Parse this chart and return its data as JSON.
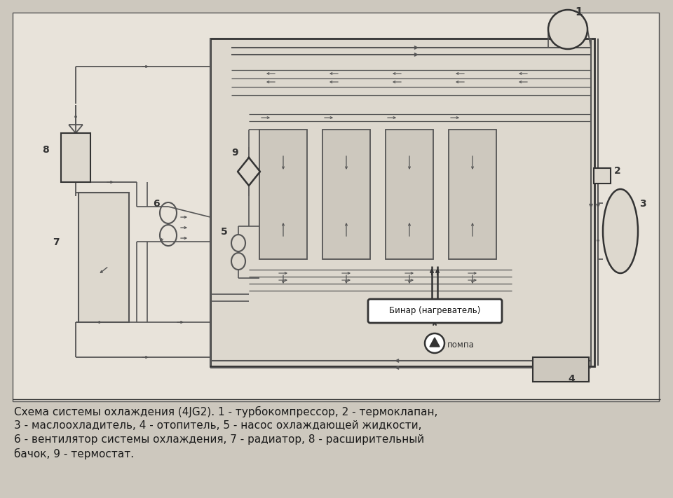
{
  "bg_color": "#cdc8be",
  "line_color": "#555555",
  "dark_line": "#333333",
  "caption_line1": "Схема системы охлаждения (4JG2). 1 - турбокомпрессор, 2 - термоклапан,",
  "caption_line2": "3 - маслоохладитель, 4 - отопитель, 5 - насос охлаждающей жидкости,",
  "caption_line3": "6 - вентилятор системы охлаждения, 7 - радиатор, 8 - расширительный",
  "caption_line4": "бачок, 9 - термостат.",
  "label_binar": "Бинар (нагреватель)",
  "label_pompa": "помпа"
}
